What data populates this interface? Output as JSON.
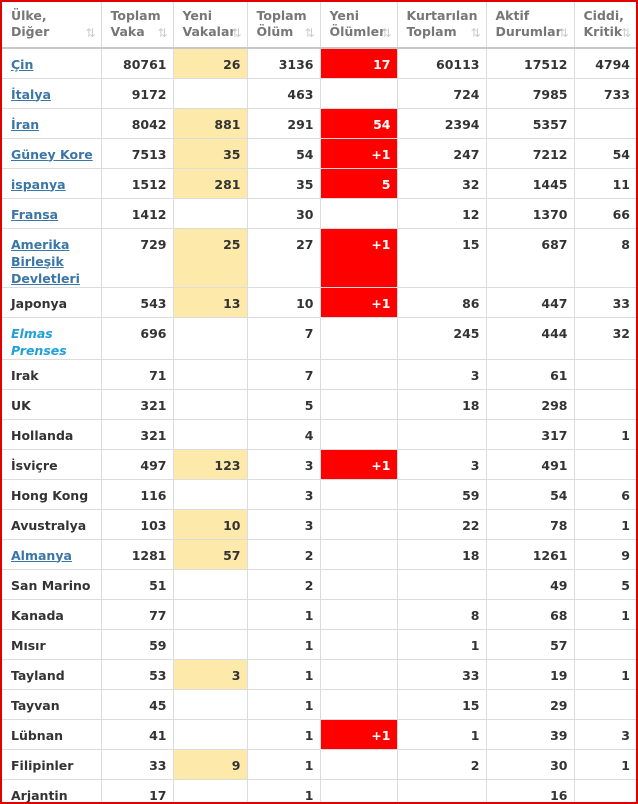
{
  "table": {
    "columns": [
      {
        "lines": [
          "Ülke,",
          "Diğer"
        ]
      },
      {
        "lines": [
          "Toplam",
          "Vaka"
        ]
      },
      {
        "lines": [
          "Yeni",
          "Vakalar"
        ],
        "highlight": "#fde9a9"
      },
      {
        "lines": [
          "Toplam",
          "Ölüm"
        ]
      },
      {
        "lines": [
          "Yeni",
          "Ölümler"
        ],
        "highlight": "#ff0000"
      },
      {
        "lines": [
          "Kurtarılan",
          "Toplam"
        ]
      },
      {
        "lines": [
          "Aktif",
          "Durumlar"
        ]
      },
      {
        "lines": [
          "Ciddi,",
          "Kritik"
        ]
      }
    ],
    "rows": [
      {
        "country": "Çin",
        "style": "link",
        "values": [
          80761,
          26,
          3136,
          17,
          60113,
          17512,
          4794
        ]
      },
      {
        "country": "İtalya",
        "style": "link",
        "values": [
          9172,
          null,
          463,
          null,
          724,
          7985,
          733
        ]
      },
      {
        "country": "İran",
        "style": "link",
        "values": [
          8042,
          881,
          291,
          54,
          2394,
          5357,
          null
        ]
      },
      {
        "country": "Güney Kore",
        "style": "link",
        "values": [
          7513,
          35,
          54,
          "+1",
          247,
          7212,
          54
        ]
      },
      {
        "country": "ispanya",
        "style": "link",
        "values": [
          1512,
          281,
          35,
          5,
          32,
          1445,
          11
        ]
      },
      {
        "country": "Fransa",
        "style": "link",
        "values": [
          1412,
          null,
          30,
          null,
          12,
          1370,
          66
        ]
      },
      {
        "country": "Amerika Birleşik Devletleri",
        "style": "link",
        "values": [
          729,
          25,
          27,
          "+1",
          15,
          687,
          8
        ]
      },
      {
        "country": "Japonya",
        "style": "plain",
        "values": [
          543,
          13,
          10,
          "+1",
          86,
          447,
          33
        ]
      },
      {
        "country": "Elmas Prenses",
        "style": "italic",
        "values": [
          696,
          null,
          7,
          null,
          245,
          444,
          32
        ]
      },
      {
        "country": "Irak",
        "style": "plain",
        "values": [
          71,
          null,
          7,
          null,
          3,
          61,
          null
        ]
      },
      {
        "country": "UK",
        "style": "plain",
        "values": [
          321,
          null,
          5,
          null,
          18,
          298,
          null
        ]
      },
      {
        "country": "Hollanda",
        "style": "plain",
        "values": [
          321,
          null,
          4,
          null,
          null,
          317,
          1
        ]
      },
      {
        "country": "İsviçre",
        "style": "plain",
        "values": [
          497,
          123,
          3,
          "+1",
          3,
          491,
          null
        ]
      },
      {
        "country": "Hong Kong",
        "style": "plain",
        "values": [
          116,
          null,
          3,
          null,
          59,
          54,
          6
        ]
      },
      {
        "country": "Avustralya",
        "style": "plain",
        "values": [
          103,
          10,
          3,
          null,
          22,
          78,
          1
        ]
      },
      {
        "country": "Almanya",
        "style": "link",
        "values": [
          1281,
          57,
          2,
          null,
          18,
          1261,
          9
        ]
      },
      {
        "country": "San Marino",
        "style": "plain",
        "values": [
          51,
          null,
          2,
          null,
          null,
          49,
          5
        ]
      },
      {
        "country": "Kanada",
        "style": "plain",
        "values": [
          77,
          null,
          1,
          null,
          8,
          68,
          1
        ]
      },
      {
        "country": "Mısır",
        "style": "plain",
        "values": [
          59,
          null,
          1,
          null,
          1,
          57,
          null
        ]
      },
      {
        "country": "Tayland",
        "style": "plain",
        "values": [
          53,
          3,
          1,
          null,
          33,
          19,
          1
        ]
      },
      {
        "country": "Tayvan",
        "style": "plain",
        "values": [
          45,
          null,
          1,
          null,
          15,
          29,
          null
        ]
      },
      {
        "country": "Lübnan",
        "style": "plain",
        "values": [
          41,
          null,
          1,
          "+1",
          1,
          39,
          3
        ]
      },
      {
        "country": "Filipinler",
        "style": "plain",
        "values": [
          33,
          9,
          1,
          null,
          2,
          30,
          1
        ]
      },
      {
        "country": "Arjantin",
        "style": "plain",
        "values": [
          17,
          null,
          1,
          null,
          null,
          16,
          null
        ]
      }
    ]
  }
}
